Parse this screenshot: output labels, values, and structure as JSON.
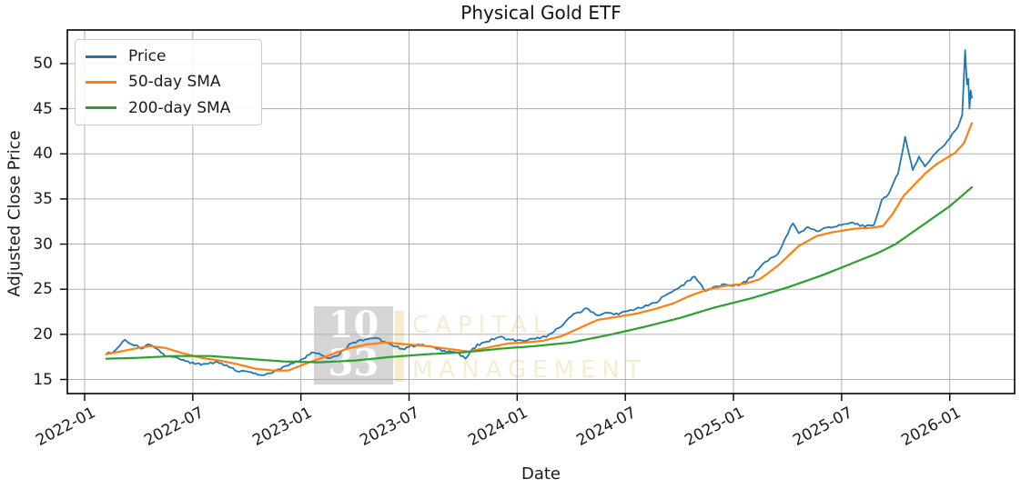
{
  "title": "Physical Gold ETF",
  "axis_labels": {
    "x": "Date",
    "y": "Adjusted Close Price"
  },
  "legend": {
    "items": [
      {
        "label": "Price",
        "color": "#1f77b4"
      },
      {
        "label": "50-day SMA",
        "color": "#ff7f0e"
      },
      {
        "label": "200-day SMA",
        "color": "#2ca02c"
      }
    ]
  },
  "watermark": {
    "square_line1": "10",
    "square_line2": "33",
    "word_line1": "CAPITAL",
    "word_line2": "MANAGEMENT",
    "square_color": "#d5d5d5",
    "digit_color": "#ffffff",
    "word_color": "#f6ecd0"
  },
  "chart_data": {
    "type": "line",
    "title": "Physical Gold ETF",
    "xlabel": "Date",
    "ylabel": "Adjusted Close Price",
    "x_ticks": [
      "2022-01",
      "2022-07",
      "2023-01",
      "2023-07",
      "2024-01",
      "2024-07",
      "2025-01",
      "2025-07",
      "2026-01"
    ],
    "y_ticks": [
      15,
      20,
      25,
      30,
      35,
      40,
      45,
      50
    ],
    "ylim": [
      13.4,
      53.7
    ],
    "grid": true,
    "grid_color": "#b0b0b0",
    "legend_position": "upper left",
    "x_tick_rotation": 30,
    "series": [
      {
        "name": "Price",
        "color": "#1f77b4",
        "width": 1.8,
        "daily_noise": 0.18,
        "points": [
          [
            "2022-02-07",
            17.8
          ],
          [
            "2022-02-20",
            18.1
          ],
          [
            "2022-03-08",
            19.4
          ],
          [
            "2022-03-20",
            18.9
          ],
          [
            "2022-04-05",
            18.4
          ],
          [
            "2022-04-18",
            18.9
          ],
          [
            "2022-05-01",
            18.4
          ],
          [
            "2022-05-15",
            17.6
          ],
          [
            "2022-06-01",
            17.5
          ],
          [
            "2022-06-15",
            17.2
          ],
          [
            "2022-07-01",
            16.9
          ],
          [
            "2022-07-15",
            16.6
          ],
          [
            "2022-08-01",
            16.9
          ],
          [
            "2022-08-15",
            16.8
          ],
          [
            "2022-09-01",
            16.4
          ],
          [
            "2022-09-15",
            15.9
          ],
          [
            "2022-10-01",
            15.9
          ],
          [
            "2022-10-15",
            15.7
          ],
          [
            "2022-11-01",
            15.5
          ],
          [
            "2022-11-15",
            15.8
          ],
          [
            "2022-12-01",
            16.4
          ],
          [
            "2022-12-15",
            16.8
          ],
          [
            "2023-01-01",
            17.2
          ],
          [
            "2023-01-19",
            18.0
          ],
          [
            "2023-02-01",
            17.9
          ],
          [
            "2023-02-15",
            17.4
          ],
          [
            "2023-03-01",
            17.6
          ],
          [
            "2023-03-25",
            19.0
          ],
          [
            "2023-04-10",
            19.4
          ],
          [
            "2023-05-05",
            19.6
          ],
          [
            "2023-05-20",
            19.2
          ],
          [
            "2023-06-05",
            18.7
          ],
          [
            "2023-06-20",
            18.4
          ],
          [
            "2023-07-16",
            18.9
          ],
          [
            "2023-08-01",
            18.7
          ],
          [
            "2023-08-30",
            18.2
          ],
          [
            "2023-09-20",
            18.0
          ],
          [
            "2023-10-05",
            17.3
          ],
          [
            "2023-10-25",
            18.9
          ],
          [
            "2023-11-10",
            19.2
          ],
          [
            "2023-12-01",
            19.7
          ],
          [
            "2023-12-20",
            19.4
          ],
          [
            "2024-01-10",
            19.3
          ],
          [
            "2024-02-01",
            19.5
          ],
          [
            "2024-02-20",
            19.7
          ],
          [
            "2024-03-10",
            20.7
          ],
          [
            "2024-04-01",
            22.0
          ],
          [
            "2024-04-27",
            22.9
          ],
          [
            "2024-05-15",
            22.1
          ],
          [
            "2024-06-01",
            22.4
          ],
          [
            "2024-06-20",
            22.2
          ],
          [
            "2024-07-10",
            22.7
          ],
          [
            "2024-08-01",
            23.0
          ],
          [
            "2024-08-20",
            23.5
          ],
          [
            "2024-09-10",
            24.4
          ],
          [
            "2024-10-01",
            25.2
          ],
          [
            "2024-10-27",
            26.4
          ],
          [
            "2024-11-15",
            24.8
          ],
          [
            "2024-12-01",
            25.3
          ],
          [
            "2024-12-20",
            25.5
          ],
          [
            "2025-01-10",
            25.4
          ],
          [
            "2025-02-01",
            26.3
          ],
          [
            "2025-02-20",
            27.8
          ],
          [
            "2025-03-15",
            28.9
          ],
          [
            "2025-04-10",
            32.3
          ],
          [
            "2025-04-20",
            31.2
          ],
          [
            "2025-05-05",
            31.9
          ],
          [
            "2025-05-20",
            31.4
          ],
          [
            "2025-06-10",
            31.9
          ],
          [
            "2025-07-01",
            32.1
          ],
          [
            "2025-07-20",
            32.4
          ],
          [
            "2025-08-10",
            31.9
          ],
          [
            "2025-08-25",
            32.1
          ],
          [
            "2025-09-08",
            34.9
          ],
          [
            "2025-09-20",
            35.6
          ],
          [
            "2025-10-05",
            37.8
          ],
          [
            "2025-10-17",
            41.9
          ],
          [
            "2025-10-30",
            38.2
          ],
          [
            "2025-11-10",
            39.7
          ],
          [
            "2025-11-20",
            38.6
          ],
          [
            "2025-12-05",
            39.9
          ],
          [
            "2025-12-20",
            40.8
          ],
          [
            "2026-01-05",
            42.2
          ],
          [
            "2026-01-15",
            43.0
          ],
          [
            "2026-01-22",
            44.3
          ],
          [
            "2026-01-27",
            51.5
          ],
          [
            "2026-01-30",
            47.7
          ],
          [
            "2026-02-02",
            48.3
          ],
          [
            "2026-02-04",
            45.0
          ],
          [
            "2026-02-06",
            47.0
          ],
          [
            "2026-02-08",
            46.2
          ]
        ]
      },
      {
        "name": "50-day SMA",
        "color": "#ff7f0e",
        "width": 2.2,
        "points": [
          [
            "2022-02-07",
            17.8
          ],
          [
            "2022-03-01",
            18.1
          ],
          [
            "2022-04-01",
            18.5
          ],
          [
            "2022-04-20",
            18.7
          ],
          [
            "2022-05-15",
            18.5
          ],
          [
            "2022-06-15",
            17.9
          ],
          [
            "2022-07-15",
            17.4
          ],
          [
            "2022-08-15",
            17.1
          ],
          [
            "2022-09-15",
            16.7
          ],
          [
            "2022-10-15",
            16.2
          ],
          [
            "2022-11-15",
            16.0
          ],
          [
            "2022-12-10",
            16.0
          ],
          [
            "2023-01-15",
            16.9
          ],
          [
            "2023-02-15",
            17.6
          ],
          [
            "2023-03-18",
            18.4
          ],
          [
            "2023-04-22",
            18.9
          ],
          [
            "2023-05-22",
            19.1
          ],
          [
            "2023-06-26",
            18.9
          ],
          [
            "2023-08-01",
            18.7
          ],
          [
            "2023-09-05",
            18.4
          ],
          [
            "2023-10-10",
            18.1
          ],
          [
            "2023-11-10",
            18.5
          ],
          [
            "2023-12-17",
            19.0
          ],
          [
            "2024-01-16",
            19.1
          ],
          [
            "2024-02-15",
            19.3
          ],
          [
            "2024-03-15",
            19.8
          ],
          [
            "2024-04-15",
            20.7
          ],
          [
            "2024-05-15",
            21.6
          ],
          [
            "2024-06-23",
            22.0
          ],
          [
            "2024-07-20",
            22.3
          ],
          [
            "2024-08-20",
            22.8
          ],
          [
            "2024-09-20",
            23.4
          ],
          [
            "2024-10-20",
            24.3
          ],
          [
            "2024-11-20",
            25.0
          ],
          [
            "2024-12-20",
            25.4
          ],
          [
            "2025-01-20",
            25.6
          ],
          [
            "2025-02-15",
            26.1
          ],
          [
            "2025-03-15",
            27.6
          ],
          [
            "2025-04-20",
            29.8
          ],
          [
            "2025-05-20",
            30.9
          ],
          [
            "2025-06-15",
            31.3
          ],
          [
            "2025-07-22",
            31.7
          ],
          [
            "2025-08-20",
            31.8
          ],
          [
            "2025-09-10",
            32.0
          ],
          [
            "2025-09-27",
            33.4
          ],
          [
            "2025-10-14",
            35.3
          ],
          [
            "2025-11-01",
            36.5
          ],
          [
            "2025-11-20",
            37.8
          ],
          [
            "2025-12-10",
            38.9
          ],
          [
            "2025-12-25",
            39.5
          ],
          [
            "2026-01-10",
            40.1
          ],
          [
            "2026-01-25",
            41.2
          ],
          [
            "2026-02-08",
            43.4
          ]
        ]
      },
      {
        "name": "200-day SMA",
        "color": "#2ca02c",
        "width": 2.2,
        "points": [
          [
            "2022-02-07",
            17.3
          ],
          [
            "2022-04-01",
            17.4
          ],
          [
            "2022-06-01",
            17.6
          ],
          [
            "2022-08-01",
            17.6
          ],
          [
            "2022-10-01",
            17.3
          ],
          [
            "2022-12-01",
            17.0
          ],
          [
            "2023-02-01",
            16.9
          ],
          [
            "2023-04-01",
            17.1
          ],
          [
            "2023-06-01",
            17.5
          ],
          [
            "2023-08-01",
            17.8
          ],
          [
            "2023-10-01",
            18.0
          ],
          [
            "2023-12-01",
            18.4
          ],
          [
            "2024-02-01",
            18.7
          ],
          [
            "2024-04-01",
            19.1
          ],
          [
            "2024-06-01",
            19.9
          ],
          [
            "2024-08-01",
            20.8
          ],
          [
            "2024-10-01",
            21.8
          ],
          [
            "2024-12-01",
            23.0
          ],
          [
            "2025-02-01",
            24.0
          ],
          [
            "2025-04-01",
            25.2
          ],
          [
            "2025-06-01",
            26.6
          ],
          [
            "2025-07-01",
            27.4
          ],
          [
            "2025-08-01",
            28.2
          ],
          [
            "2025-09-01",
            29.0
          ],
          [
            "2025-10-01",
            30.0
          ],
          [
            "2025-11-01",
            31.4
          ],
          [
            "2025-12-01",
            32.8
          ],
          [
            "2026-01-01",
            34.2
          ],
          [
            "2026-02-08",
            36.3
          ]
        ]
      }
    ]
  }
}
